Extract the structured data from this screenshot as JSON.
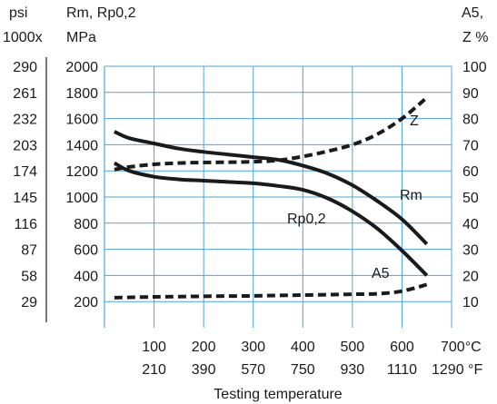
{
  "chart_data": {
    "type": "line",
    "x": {
      "label": "Testing temperature",
      "unit_c": "°C",
      "unit_f": "°F",
      "range_c": [
        0,
        700
      ],
      "ticks_c": [
        "100",
        "200",
        "300",
        "400",
        "500",
        "600",
        "700°C"
      ],
      "ticks_f": [
        "210",
        "390",
        "570",
        "750",
        "930",
        "1110",
        "1290 °F"
      ]
    },
    "y_left": {
      "label": "Rm, Rp0,2",
      "unit": "MPa",
      "range": [
        0,
        2000
      ],
      "ticks": [
        "200",
        "400",
        "600",
        "800",
        "1000",
        "1200",
        "1400",
        "1600",
        "1800",
        "2000"
      ]
    },
    "y_left_psi": {
      "label": "psi",
      "unit": "1000x",
      "ticks": [
        "29",
        "58",
        "87",
        "116",
        "145",
        "174",
        "203",
        "232",
        "261",
        "290"
      ]
    },
    "y_right": {
      "label": "A5,",
      "unit": "Z %",
      "range": [
        0,
        100
      ],
      "ticks": [
        "10",
        "20",
        "30",
        "40",
        "50",
        "60",
        "70",
        "80",
        "90",
        "100"
      ]
    },
    "grid": true,
    "series": [
      {
        "name": "Rm",
        "axis": "left",
        "style": "solid",
        "points": [
          [
            20,
            1500
          ],
          [
            50,
            1450
          ],
          [
            100,
            1410
          ],
          [
            150,
            1370
          ],
          [
            200,
            1345
          ],
          [
            250,
            1325
          ],
          [
            300,
            1305
          ],
          [
            350,
            1285
          ],
          [
            400,
            1240
          ],
          [
            450,
            1180
          ],
          [
            500,
            1090
          ],
          [
            550,
            970
          ],
          [
            600,
            830
          ],
          [
            650,
            640
          ]
        ]
      },
      {
        "name": "Rp0,2",
        "axis": "left",
        "style": "solid",
        "points": [
          [
            20,
            1260
          ],
          [
            50,
            1200
          ],
          [
            100,
            1155
          ],
          [
            150,
            1135
          ],
          [
            200,
            1125
          ],
          [
            250,
            1115
          ],
          [
            300,
            1105
          ],
          [
            350,
            1085
          ],
          [
            400,
            1055
          ],
          [
            450,
            990
          ],
          [
            500,
            890
          ],
          [
            550,
            760
          ],
          [
            600,
            590
          ],
          [
            650,
            400
          ]
        ]
      },
      {
        "name": "Z",
        "axis": "right",
        "style": "dashed",
        "points": [
          [
            20,
            60.5
          ],
          [
            50,
            61.5
          ],
          [
            100,
            62.5
          ],
          [
            150,
            63
          ],
          [
            200,
            63.2
          ],
          [
            250,
            63.3
          ],
          [
            300,
            63.5
          ],
          [
            350,
            64
          ],
          [
            400,
            65.5
          ],
          [
            450,
            67.5
          ],
          [
            500,
            70
          ],
          [
            550,
            74
          ],
          [
            600,
            80
          ],
          [
            650,
            88
          ]
        ]
      },
      {
        "name": "A5",
        "axis": "right",
        "style": "dashed",
        "points": [
          [
            20,
            11.5
          ],
          [
            100,
            11.8
          ],
          [
            200,
            12
          ],
          [
            300,
            12.2
          ],
          [
            400,
            12.5
          ],
          [
            500,
            12.8
          ],
          [
            550,
            13
          ],
          [
            600,
            14
          ],
          [
            650,
            16.5
          ]
        ]
      }
    ]
  }
}
